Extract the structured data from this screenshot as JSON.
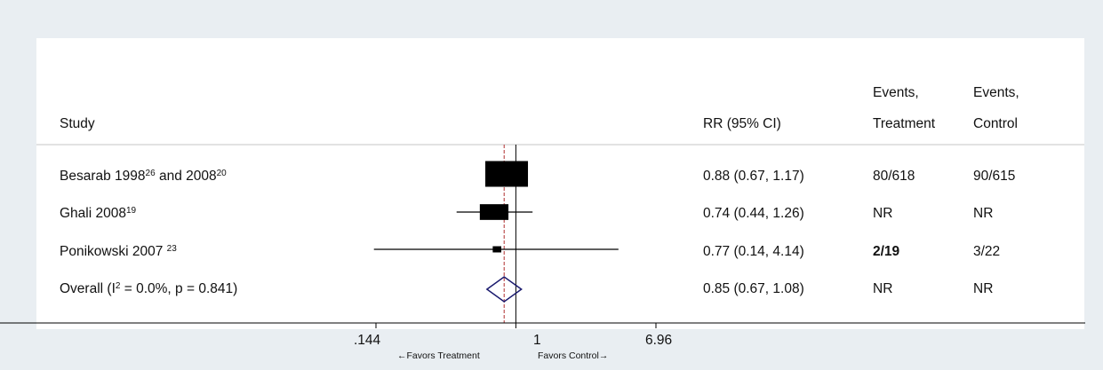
{
  "chart_data": {
    "type": "forest",
    "measure": "RR (95% CI)",
    "header": {
      "study": "Study",
      "rr": "RR (95% CI)",
      "events_treatment": [
        "Events,",
        "Treatment"
      ],
      "events_control": [
        "Events,",
        "Control"
      ]
    },
    "studies": [
      {
        "name": "Besarab 1998",
        "ref1": "26",
        "mid": " and 2008",
        "ref2": "20",
        "rr": 0.88,
        "lower": 0.67,
        "upper": 1.17,
        "rr_text": "0.88 (0.67, 1.17)",
        "events_treatment": "80/618",
        "events_control": "90/615",
        "weight": 1.0
      },
      {
        "name": "Ghali 2008",
        "ref1": "19",
        "mid": "",
        "ref2": "",
        "rr": 0.74,
        "lower": 0.44,
        "upper": 1.26,
        "rr_text": "0.74 (0.44, 1.26)",
        "events_treatment": "NR",
        "events_control": "NR",
        "weight": 0.45
      },
      {
        "name": "Ponikowski 2007",
        "ref1": "23",
        "mid": "",
        "ref2": "",
        "rr": 0.77,
        "lower": 0.14,
        "upper": 4.14,
        "rr_text": "0.77 (0.14, 4.14)",
        "events_treatment": "2/19",
        "events_control": "3/22",
        "weight": 0.04
      }
    ],
    "overall": {
      "label_pre": "Overall  (I",
      "label_sup": "2",
      "label_post": " = 0.0%, p = 0.841)",
      "rr": 0.85,
      "lower": 0.67,
      "upper": 1.08,
      "rr_text": "0.85 (0.67, 1.08)",
      "events_treatment": "NR",
      "events_control": "NR"
    },
    "x_axis": {
      "scale": "log",
      "range": [
        0.144,
        6.96
      ],
      "ticks": [
        {
          "value": 0.144,
          "label": ".144"
        },
        {
          "value": 1,
          "label": "1"
        },
        {
          "value": 6.96,
          "label": "6.96"
        }
      ],
      "left_label": "←Favors Treatment",
      "right_label": "Favors Control→"
    },
    "null_line": 1,
    "pooled_line": 0.85,
    "colors": {
      "background": "#e9eef2",
      "panel": "#ffffff",
      "box": "#000000",
      "diamond": "#1a1a6e",
      "pooled_line": "#b03030"
    }
  }
}
